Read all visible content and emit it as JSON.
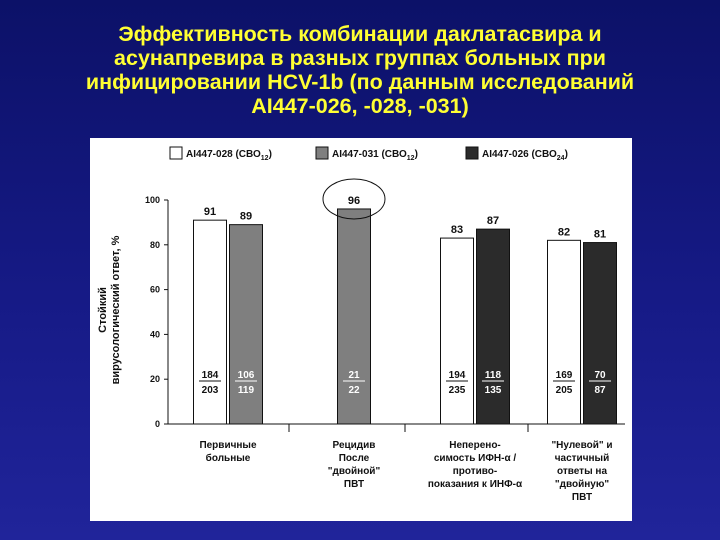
{
  "slide": {
    "title": "Эффективность комбинации даклатасвира и\nасунапревира в разных группах больных при\nинфицировании HCV-1b (по данным исследований\nAI447-026, -028, -031)"
  },
  "colors": {
    "background": "#161a86",
    "title": "#ffff33",
    "series": [
      "#ffffff",
      "#7f7f7f",
      "#2b2b2b"
    ]
  },
  "chart_data": {
    "type": "bar",
    "ylabel": "Стойкий вирусологический ответ, %",
    "ylim": [
      0,
      100
    ],
    "yticks": [
      "0",
      "20",
      "40",
      "60",
      "80",
      "100"
    ],
    "legend": [
      "AI447-028 (СВО",
      "AI447-031 (СВО",
      "AI447-026 (СВО"
    ],
    "legend_sub": [
      "12",
      "12",
      "24"
    ],
    "legend_close": ")",
    "groups": [
      {
        "label": [
          "Первичные",
          "больные"
        ],
        "bars": [
          {
            "series": 0,
            "value": 91,
            "label": "91",
            "num": "184",
            "den": "203"
          },
          {
            "series": 1,
            "value": 89,
            "label": "89",
            "num": "106",
            "den": "119"
          }
        ]
      },
      {
        "label": [
          "Рецидив",
          "После",
          "\"двойной\"",
          "ПВТ"
        ],
        "highlight": true,
        "bars": [
          {
            "series": 1,
            "value": 96,
            "label": "96",
            "num": "21",
            "den": "22"
          }
        ]
      },
      {
        "label": [
          "Неперено-",
          "симость ИФН-α /",
          "противо-",
          "показания к ИНФ-α"
        ],
        "bars": [
          {
            "series": 0,
            "value": 83,
            "label": "83",
            "num": "194",
            "den": "235"
          },
          {
            "series": 2,
            "value": 87,
            "label": "87",
            "num": "118",
            "den": "135"
          }
        ]
      },
      {
        "label": [
          "\"Нулевой\" и",
          "частичный",
          "ответы на",
          "\"двойную\"",
          "ПВТ"
        ],
        "bars": [
          {
            "series": 0,
            "value": 82,
            "label": "82",
            "num": "169",
            "den": "205"
          },
          {
            "series": 2,
            "value": 81,
            "label": "81",
            "num": "70",
            "den": "87"
          }
        ]
      }
    ]
  }
}
